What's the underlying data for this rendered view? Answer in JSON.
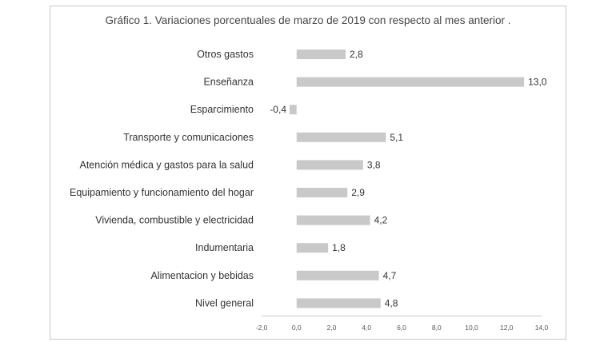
{
  "chart_data": {
    "type": "bar",
    "orientation": "horizontal",
    "title": "Gráfico 1. Variaciones porcentuales de marzo de 2019 con respecto al mes anterior .",
    "categories": [
      "Otros gastos",
      "Enseñanza",
      "Esparcimiento",
      "Transporte y comunicaciones",
      "Atención médica y gastos para la salud",
      "Equipamiento y funcionamiento del hogar",
      "Vivienda, combustible y electricidad",
      "Indumentaria",
      "Alimentacion y bebidas",
      "Nivel general"
    ],
    "values": [
      2.8,
      13.0,
      -0.4,
      5.1,
      3.8,
      2.9,
      4.2,
      1.8,
      4.7,
      4.8
    ],
    "value_labels": [
      "2,8",
      "13,0",
      "-0,4",
      "5,1",
      "3,8",
      "2,9",
      "4,2",
      "1,8",
      "4,7",
      "4,8"
    ],
    "xlim": [
      -2.0,
      14.0
    ],
    "x_ticks": [
      "-2,0",
      "0,0",
      "2,0",
      "4,0",
      "6,0",
      "8,0",
      "10,0",
      "12,0",
      "14,0"
    ],
    "x_tick_values": [
      -2,
      0,
      2,
      4,
      6,
      8,
      10,
      12,
      14
    ],
    "bar_color": "#c9c9c9",
    "grid": false,
    "legend": "none"
  }
}
